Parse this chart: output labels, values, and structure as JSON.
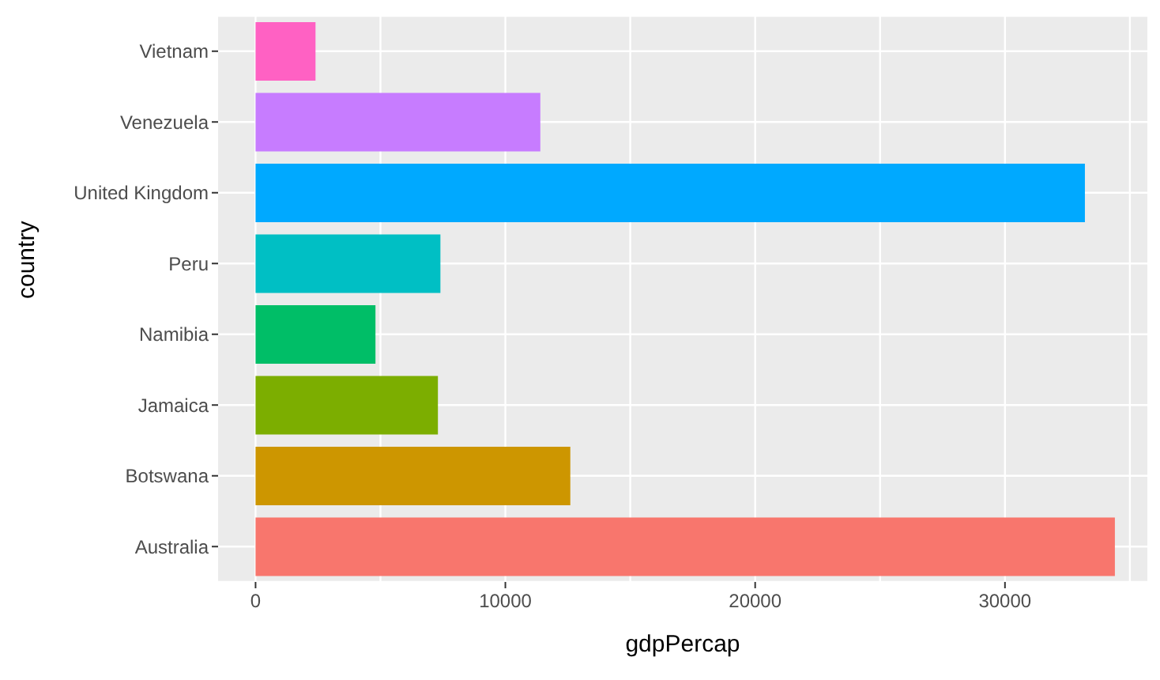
{
  "chart_data": {
    "type": "bar",
    "orientation": "horizontal",
    "xlabel": "gdpPercap",
    "ylabel": "country",
    "categories": [
      "Vietnam",
      "Venezuela",
      "United Kingdom",
      "Peru",
      "Namibia",
      "Jamaica",
      "Botswana",
      "Australia"
    ],
    "values": [
      2400,
      11400,
      33200,
      7400,
      4800,
      7300,
      12600,
      34400
    ],
    "colors": [
      "#ff61c3",
      "#c77cff",
      "#00a9ff",
      "#00bfc4",
      "#00be67",
      "#7cae00",
      "#cd9600",
      "#f8766d"
    ],
    "xlim": [
      -1500,
      35700
    ],
    "xticks": [
      0,
      {
        "value": 5000,
        "label": null
      },
      10000,
      {
        "value": 15000,
        "label": null
      },
      20000,
      {
        "value": 25000,
        "label": null
      },
      30000,
      {
        "value": 35000,
        "label": null
      }
    ],
    "grid": true,
    "legend": false
  }
}
